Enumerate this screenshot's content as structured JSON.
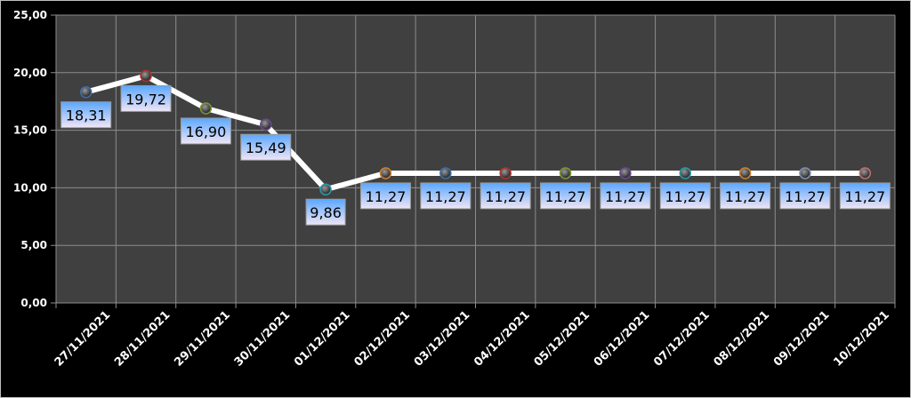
{
  "chart_data": {
    "type": "line",
    "title": "",
    "xlabel": "",
    "ylabel": "",
    "categories": [
      "27/11/2021",
      "28/11/2021",
      "29/11/2021",
      "30/11/2021",
      "01/12/2021",
      "02/12/2021",
      "03/12/2021",
      "04/12/2021",
      "05/12/2021",
      "06/12/2021",
      "07/12/2021",
      "08/12/2021",
      "09/12/2021",
      "10/12/2021"
    ],
    "values": [
      18.31,
      19.72,
      16.9,
      15.49,
      9.86,
      11.27,
      11.27,
      11.27,
      11.27,
      11.27,
      11.27,
      11.27,
      11.27,
      11.27
    ],
    "data_labels": [
      "18,31",
      "19,72",
      "16,90",
      "15,49",
      "9,86",
      "11,27",
      "11,27",
      "11,27",
      "11,27",
      "11,27",
      "11,27",
      "11,27",
      "11,27",
      "11,27"
    ],
    "ylim": [
      0,
      25
    ],
    "yticks": [
      "0,00",
      "5,00",
      "10,00",
      "15,00",
      "20,00",
      "25,00"
    ],
    "grid": true,
    "legend": "none",
    "colors": {
      "background": "#000000",
      "plot": "#404040",
      "grid": "#8c8c8c",
      "line": "#ffffff",
      "label_box_top": "#5aa7ff",
      "label_box_bottom": "#f0e6f5"
    },
    "marker_colors": [
      "#3a6ea8",
      "#b03030",
      "#7a9a30",
      "#6a4a90",
      "#2a9aa8",
      "#d08030",
      "#3a6ea8",
      "#b03030",
      "#7a9a30",
      "#6a4a90",
      "#2a9aa8",
      "#d08030",
      "#8090b0",
      "#c07070"
    ]
  }
}
